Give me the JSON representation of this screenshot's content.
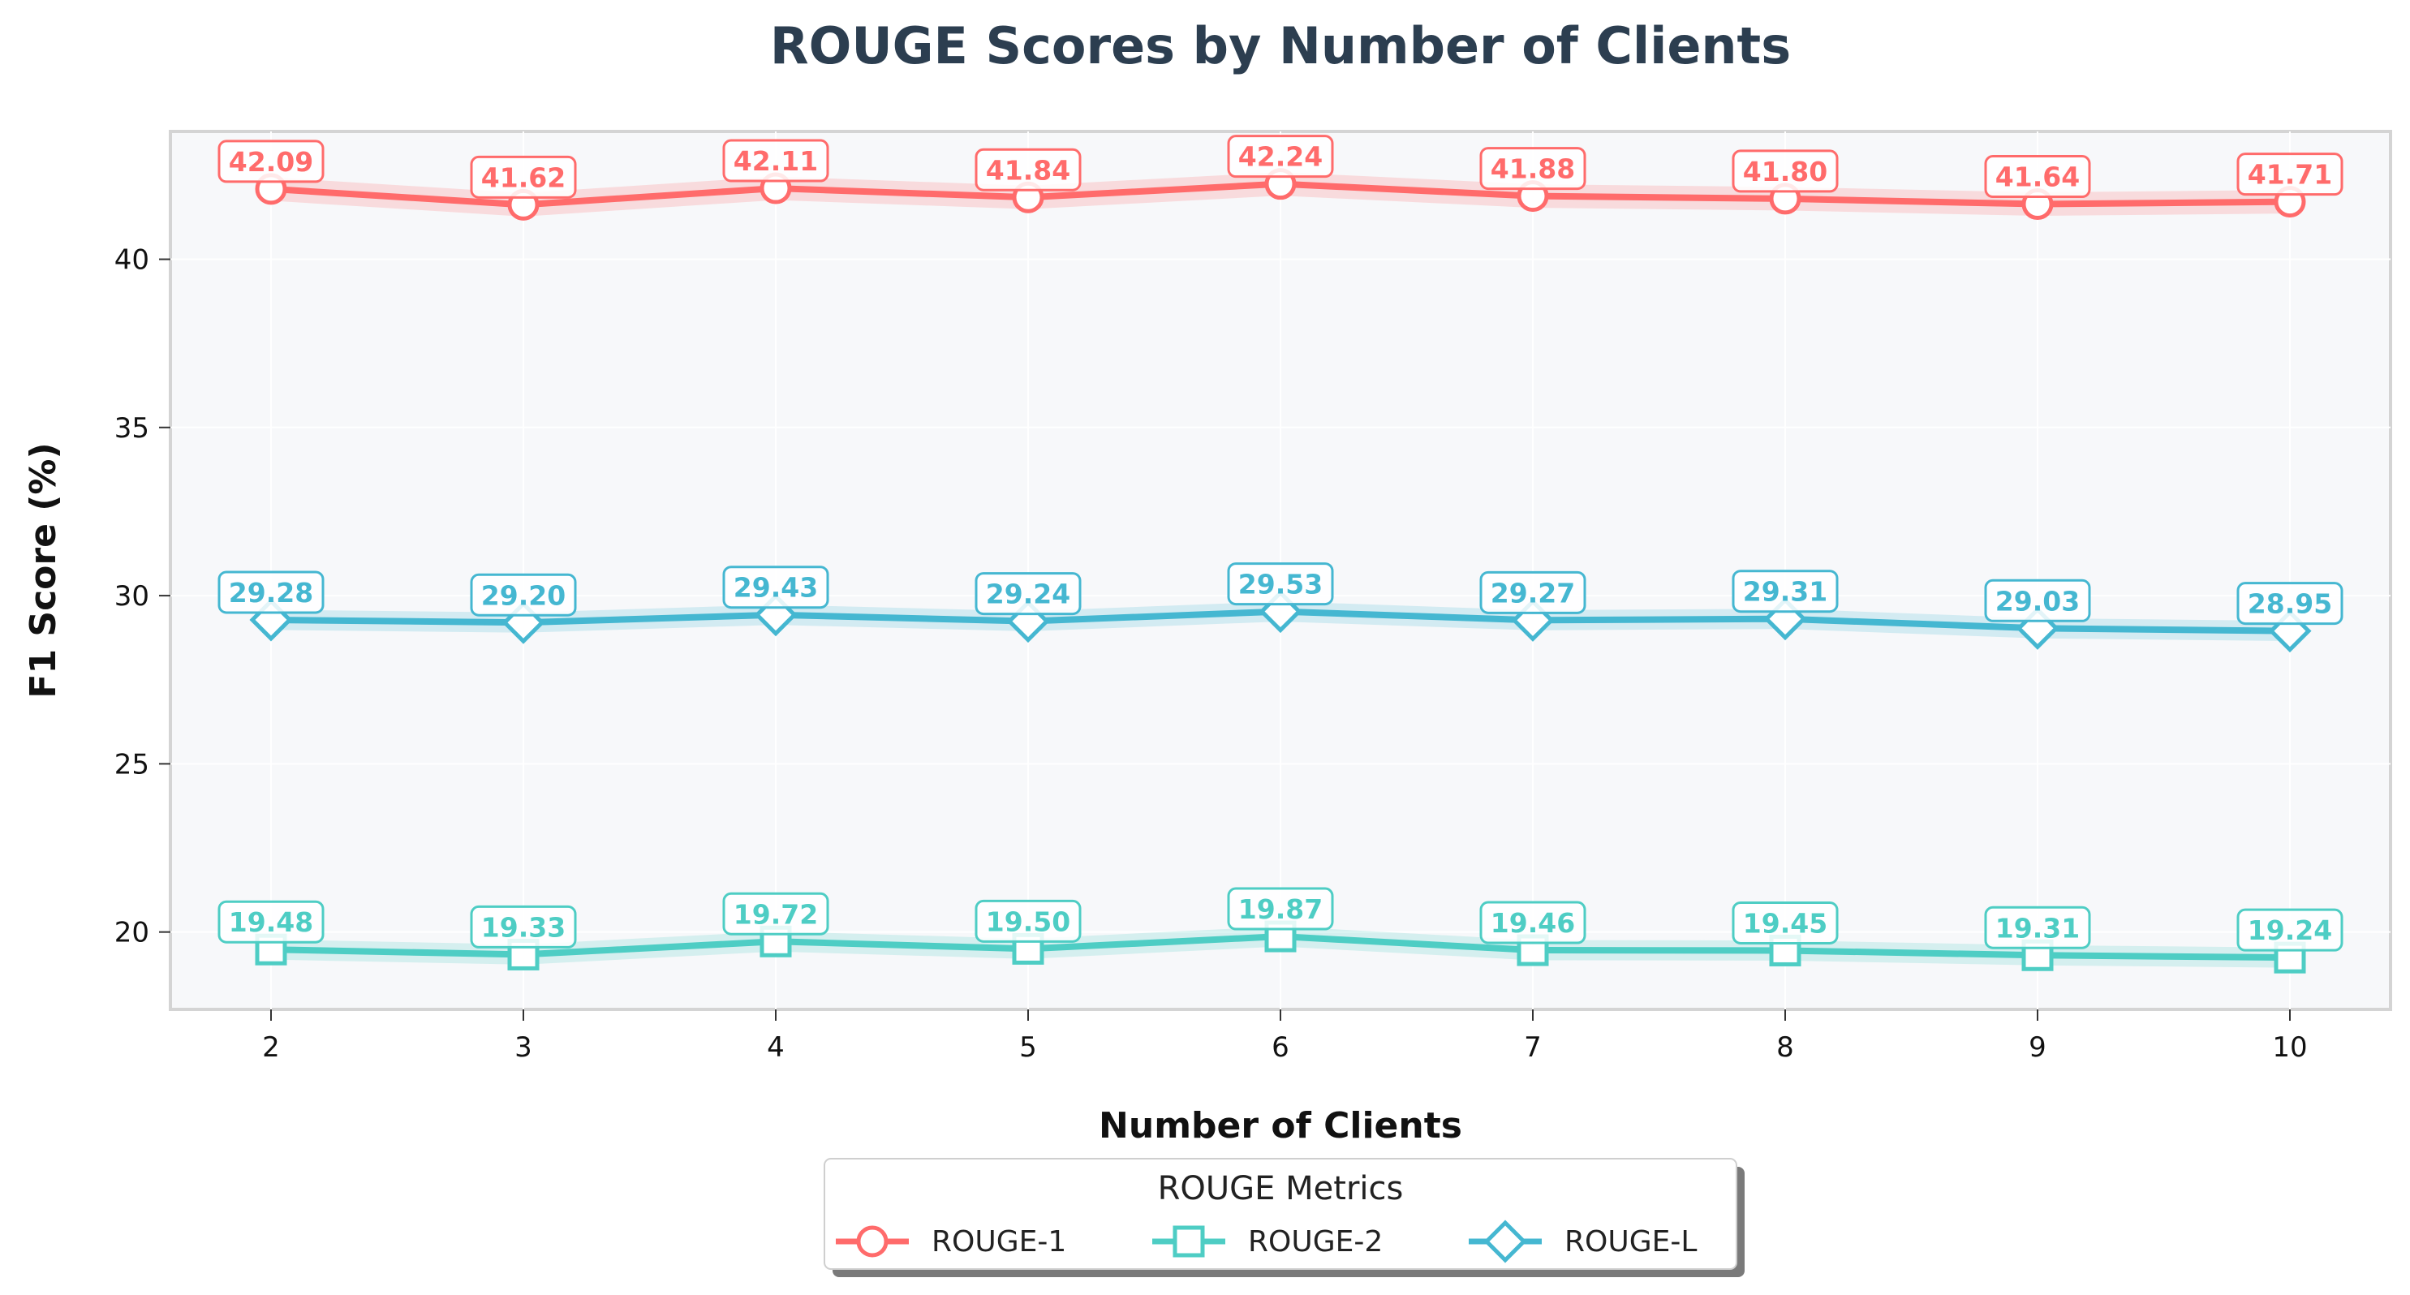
{
  "chart_data": {
    "type": "line",
    "title": "ROUGE Scores by Number of Clients",
    "xlabel": "Number of Clients",
    "ylabel": "F1 Score (%)",
    "x": [
      2,
      3,
      4,
      5,
      6,
      7,
      8,
      9,
      10
    ],
    "x_tick_labels": [
      "2",
      "3",
      "4",
      "5",
      "6",
      "7",
      "8",
      "9",
      "10"
    ],
    "ylim": [
      17.7,
      43.8
    ],
    "y_ticks": [
      20,
      25,
      30,
      35,
      40
    ],
    "y_tick_labels": [
      "20",
      "25",
      "30",
      "35",
      "40"
    ],
    "grid": true,
    "legend": {
      "title": "ROUGE Metrics",
      "placement": "bottom-center"
    },
    "series": [
      {
        "name": "ROUGE-1",
        "color": "#ff6b6b",
        "marker": "circle",
        "values": [
          42.09,
          41.62,
          42.11,
          41.84,
          42.24,
          41.88,
          41.8,
          41.64,
          41.71
        ],
        "labels": [
          "42.09",
          "41.62",
          "42.11",
          "41.84",
          "42.24",
          "41.88",
          "41.80",
          "41.64",
          "41.71"
        ],
        "band": 0.35
      },
      {
        "name": "ROUGE-2",
        "color": "#4ecdc4",
        "marker": "square",
        "values": [
          19.48,
          19.33,
          19.72,
          19.5,
          19.87,
          19.46,
          19.45,
          19.31,
          19.24
        ],
        "labels": [
          "19.48",
          "19.33",
          "19.72",
          "19.50",
          "19.87",
          "19.46",
          "19.45",
          "19.31",
          "19.24"
        ],
        "band": 0.3
      },
      {
        "name": "ROUGE-L",
        "color": "#45b7d1",
        "marker": "diamond",
        "values": [
          29.28,
          29.2,
          29.43,
          29.24,
          29.53,
          29.27,
          29.31,
          29.03,
          28.95
        ],
        "labels": [
          "29.28",
          "29.20",
          "29.43",
          "29.24",
          "29.53",
          "29.27",
          "29.31",
          "29.03",
          "28.95"
        ],
        "band": 0.3
      }
    ]
  }
}
